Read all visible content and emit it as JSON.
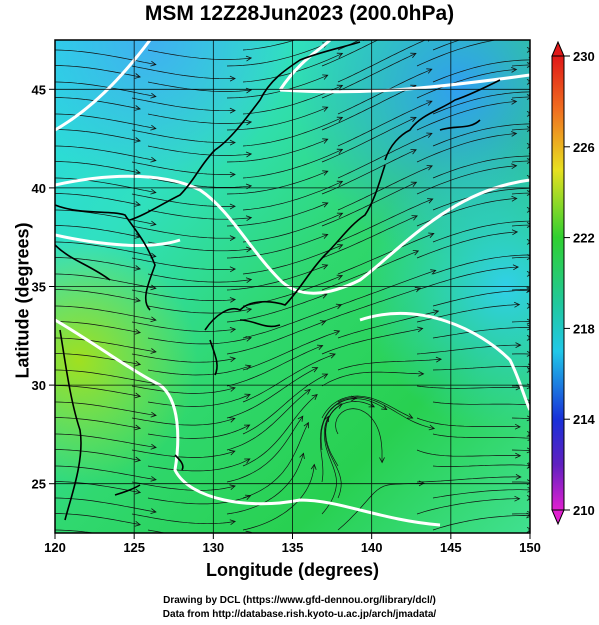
{
  "title": "MSM 12Z28Jun2023 (200.0hPa)",
  "xlabel": "Longitude (degrees)",
  "ylabel": "Latitude  (degrees)",
  "credit_line1": "Drawing by DCL (https://www.gfd-dennou.org/library/dcl/)",
  "credit_line2": "Data from http://database.rish.kyoto-u.ac.jp/arch/jmadata/",
  "x_ticks": [
    "120",
    "125",
    "130",
    "135",
    "140",
    "145",
    "150"
  ],
  "y_ticks": [
    "25",
    "30",
    "35",
    "40",
    "45"
  ],
  "colorbar_ticks": [
    "230",
    "226",
    "222",
    "218",
    "214",
    "210"
  ],
  "chart_data": {
    "type": "heatmap",
    "xlim": [
      120,
      150
    ],
    "ylim": [
      22.5,
      47.5
    ],
    "x_ticks": [
      120,
      125,
      130,
      135,
      140,
      145,
      150
    ],
    "y_ticks": [
      25,
      30,
      35,
      40,
      45
    ],
    "grid": true,
    "colorbar": {
      "range": [
        210,
        230
      ],
      "ticks": [
        230,
        226,
        222,
        218,
        214,
        210
      ]
    },
    "colors": {
      "low": "#e000e0",
      "mid_low": "#1030e0",
      "mid": "#20c8e0",
      "mid_high": "#20d020",
      "high": "#e02020"
    }
  }
}
